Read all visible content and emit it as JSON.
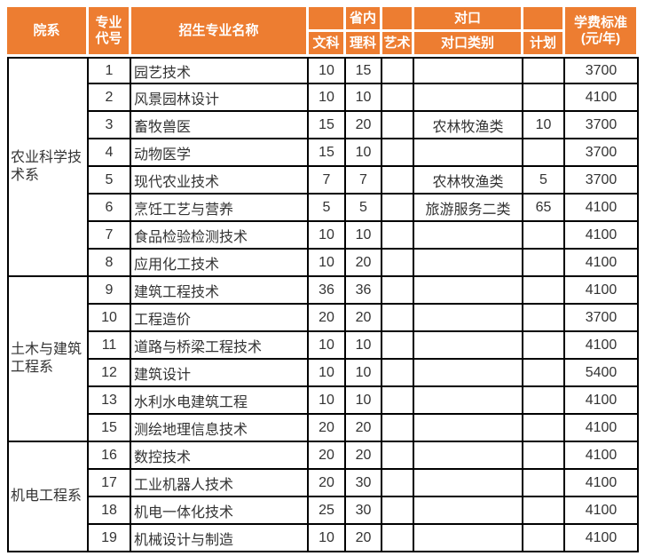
{
  "colors": {
    "accent_orange": "#ED7D31",
    "header_text": "#FFFFFF",
    "body_text": "#333333",
    "border_black": "#000000"
  },
  "header": {
    "dept": "院系",
    "code_line1": "专业",
    "code_line2": "代号",
    "major_name": "招生专业名称",
    "shengnei_group": "省内",
    "duikou_group": "对口",
    "wenke": "文科",
    "like": "理科",
    "yishu": "艺术",
    "duikou_type": "对口类别",
    "jihua": "计划",
    "fee_line1": "学费标准",
    "fee_line2": "(元/年)"
  },
  "departments": [
    {
      "name": "农业科学技术系",
      "rows": [
        {
          "code": "1",
          "major": "园艺技术",
          "wenke": "10",
          "like": "15",
          "yishu": "",
          "duikou_type": "",
          "jihua": "",
          "fee": "3700"
        },
        {
          "code": "2",
          "major": "风景园林设计",
          "wenke": "10",
          "like": "10",
          "yishu": "",
          "duikou_type": "",
          "jihua": "",
          "fee": "4100"
        },
        {
          "code": "3",
          "major": "畜牧兽医",
          "wenke": "15",
          "like": "20",
          "yishu": "",
          "duikou_type": "农林牧渔类",
          "jihua": "10",
          "fee": "3700"
        },
        {
          "code": "4",
          "major": "动物医学",
          "wenke": "15",
          "like": "10",
          "yishu": "",
          "duikou_type": "",
          "jihua": "",
          "fee": "3700"
        },
        {
          "code": "5",
          "major": "现代农业技术",
          "wenke": "7",
          "like": "7",
          "yishu": "",
          "duikou_type": "农林牧渔类",
          "jihua": "5",
          "fee": "3700"
        },
        {
          "code": "6",
          "major": "烹饪工艺与营养",
          "wenke": "5",
          "like": "5",
          "yishu": "",
          "duikou_type": "旅游服务二类",
          "jihua": "65",
          "fee": "4100"
        },
        {
          "code": "7",
          "major": "食品检验检测技术",
          "wenke": "10",
          "like": "10",
          "yishu": "",
          "duikou_type": "",
          "jihua": "",
          "fee": "4100"
        },
        {
          "code": "8",
          "major": "应用化工技术",
          "wenke": "10",
          "like": "20",
          "yishu": "",
          "duikou_type": "",
          "jihua": "",
          "fee": "4100"
        }
      ]
    },
    {
      "name": "土木与建筑工程系",
      "rows": [
        {
          "code": "9",
          "major": "建筑工程技术",
          "wenke": "36",
          "like": "36",
          "yishu": "",
          "duikou_type": "",
          "jihua": "",
          "fee": "4100"
        },
        {
          "code": "10",
          "major": "工程造价",
          "wenke": "20",
          "like": "20",
          "yishu": "",
          "duikou_type": "",
          "jihua": "",
          "fee": "3700"
        },
        {
          "code": "11",
          "major": "道路与桥梁工程技术",
          "wenke": "10",
          "like": "10",
          "yishu": "",
          "duikou_type": "",
          "jihua": "",
          "fee": "4100"
        },
        {
          "code": "12",
          "major": "建筑设计",
          "wenke": "10",
          "like": "10",
          "yishu": "",
          "duikou_type": "",
          "jihua": "",
          "fee": "5400"
        },
        {
          "code": "13",
          "major": "水利水电建筑工程",
          "wenke": "10",
          "like": "10",
          "yishu": "",
          "duikou_type": "",
          "jihua": "",
          "fee": "4100"
        },
        {
          "code": "15",
          "major": "测绘地理信息技术",
          "wenke": "20",
          "like": "20",
          "yishu": "",
          "duikou_type": "",
          "jihua": "",
          "fee": "4100"
        }
      ]
    },
    {
      "name": "机电工程系",
      "rows": [
        {
          "code": "16",
          "major": "数控技术",
          "wenke": "20",
          "like": "20",
          "yishu": "",
          "duikou_type": "",
          "jihua": "",
          "fee": "4100"
        },
        {
          "code": "17",
          "major": "工业机器人技术",
          "wenke": "20",
          "like": "30",
          "yishu": "",
          "duikou_type": "",
          "jihua": "",
          "fee": "4100"
        },
        {
          "code": "18",
          "major": "机电一体化技术",
          "wenke": "25",
          "like": "30",
          "yishu": "",
          "duikou_type": "",
          "jihua": "",
          "fee": "4100"
        },
        {
          "code": "19",
          "major": "机械设计与制造",
          "wenke": "10",
          "like": "20",
          "yishu": "",
          "duikou_type": "",
          "jihua": "",
          "fee": "4100"
        }
      ]
    }
  ]
}
